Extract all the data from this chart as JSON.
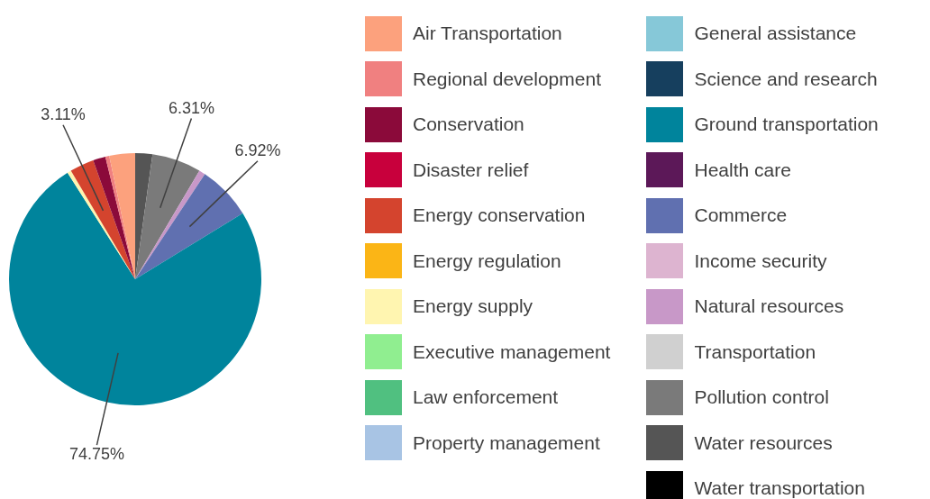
{
  "chart_data": {
    "type": "pie",
    "categories": [
      "Air Transportation",
      "Regional development",
      "Conservation",
      "Disaster relief",
      "Energy conservation",
      "Energy regulation",
      "Energy supply",
      "Executive management",
      "Law enforcement",
      "Property management",
      "General assistance",
      "Science and research",
      "Ground transportation",
      "Health care",
      "Commerce",
      "Income security",
      "Natural resources",
      "Transportation",
      "Pollution control",
      "Water resources",
      "Water transportation"
    ],
    "values": [
      3.3,
      0.5,
      1.6,
      0,
      3.11,
      0,
      0.5,
      0,
      0,
      0,
      0,
      0,
      74.75,
      0,
      6.92,
      0,
      0.81,
      0,
      6.31,
      2.2,
      0
    ],
    "colors": [
      "#fca17d",
      "#f08080",
      "#8b0a3a",
      "#c8003c",
      "#d4442e",
      "#fbb516",
      "#fff5b0",
      "#90ee90",
      "#50c080",
      "#a8c4e4",
      "#86c8d8",
      "#163f5e",
      "#00849c",
      "#5c1858",
      "#6070b0",
      "#ddb4d0",
      "#c898c8",
      "#d0d0d0",
      "#7a7a7a",
      "#555555",
      "#000000"
    ],
    "value_labels": [
      null,
      null,
      null,
      null,
      "3.11%",
      null,
      null,
      null,
      null,
      null,
      null,
      null,
      "74.75%",
      null,
      "6.92%",
      null,
      null,
      null,
      "6.31%",
      null,
      null
    ],
    "legend": "right"
  }
}
